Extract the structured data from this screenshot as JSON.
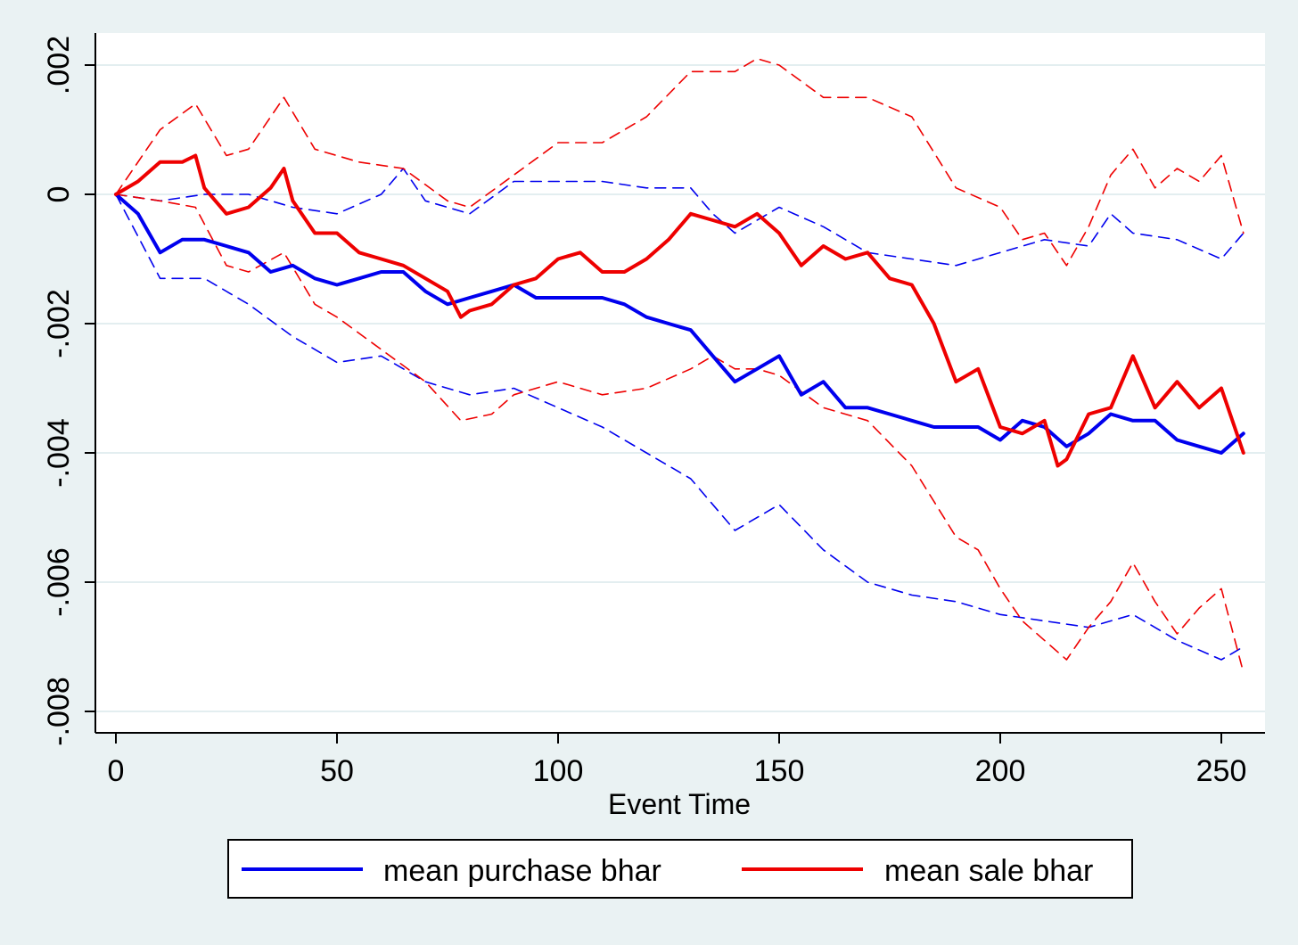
{
  "chart_data": {
    "type": "line",
    "title": "",
    "xlabel": "Event Time",
    "ylabel": "",
    "xlim": [
      0,
      256
    ],
    "ylim": [
      -0.008,
      0.0024
    ],
    "xticks": [
      0,
      50,
      100,
      150,
      200,
      250
    ],
    "xtick_labels": [
      "0",
      "50",
      "100",
      "150",
      "200",
      "250"
    ],
    "yticks": [
      0.002,
      0,
      -0.002,
      -0.004,
      -0.006,
      -0.008
    ],
    "ytick_labels": [
      ".002",
      "0",
      "-.002",
      "-.004",
      "-.006",
      "-.008"
    ],
    "grid": true,
    "legend_position": "bottom",
    "colors": {
      "purchase": "#0000ee",
      "sale": "#ee0000",
      "background": "#eaf2f3",
      "plot_background": "#ffffff",
      "grid": "#e3eef0"
    },
    "legend": [
      {
        "label": "mean purchase bhar",
        "series": "purchase"
      },
      {
        "label": "mean sale bhar",
        "series": "sale"
      }
    ],
    "series": [
      {
        "name": "mean purchase bhar",
        "key": "purchase",
        "style": "solid",
        "points": [
          [
            0,
            0
          ],
          [
            5,
            -0.0003
          ],
          [
            10,
            -0.0009
          ],
          [
            15,
            -0.0007
          ],
          [
            20,
            -0.0007
          ],
          [
            25,
            -0.0008
          ],
          [
            30,
            -0.0009
          ],
          [
            35,
            -0.0012
          ],
          [
            40,
            -0.0011
          ],
          [
            45,
            -0.0013
          ],
          [
            50,
            -0.0014
          ],
          [
            55,
            -0.0013
          ],
          [
            60,
            -0.0012
          ],
          [
            65,
            -0.0012
          ],
          [
            70,
            -0.0015
          ],
          [
            75,
            -0.0017
          ],
          [
            80,
            -0.0016
          ],
          [
            85,
            -0.0015
          ],
          [
            90,
            -0.0014
          ],
          [
            95,
            -0.0016
          ],
          [
            100,
            -0.0016
          ],
          [
            105,
            -0.0016
          ],
          [
            110,
            -0.0016
          ],
          [
            115,
            -0.0017
          ],
          [
            120,
            -0.0019
          ],
          [
            125,
            -0.002
          ],
          [
            130,
            -0.0021
          ],
          [
            135,
            -0.0025
          ],
          [
            140,
            -0.0029
          ],
          [
            145,
            -0.0027
          ],
          [
            150,
            -0.0025
          ],
          [
            155,
            -0.0031
          ],
          [
            160,
            -0.0029
          ],
          [
            165,
            -0.0033
          ],
          [
            170,
            -0.0033
          ],
          [
            175,
            -0.0034
          ],
          [
            180,
            -0.0035
          ],
          [
            185,
            -0.0036
          ],
          [
            190,
            -0.0036
          ],
          [
            195,
            -0.0036
          ],
          [
            200,
            -0.0038
          ],
          [
            205,
            -0.0035
          ],
          [
            210,
            -0.0036
          ],
          [
            215,
            -0.0039
          ],
          [
            220,
            -0.0037
          ],
          [
            225,
            -0.0034
          ],
          [
            230,
            -0.0035
          ],
          [
            235,
            -0.0035
          ],
          [
            240,
            -0.0038
          ],
          [
            245,
            -0.0039
          ],
          [
            250,
            -0.004
          ],
          [
            255,
            -0.0037
          ]
        ]
      },
      {
        "name": "purchase upper band",
        "key": "purchase",
        "style": "dashed",
        "points": [
          [
            0,
            0
          ],
          [
            10,
            -0.0001
          ],
          [
            20,
            0
          ],
          [
            30,
            0
          ],
          [
            40,
            -0.0002
          ],
          [
            50,
            -0.0003
          ],
          [
            60,
            0
          ],
          [
            65,
            0.0004
          ],
          [
            70,
            -0.0001
          ],
          [
            80,
            -0.0003
          ],
          [
            90,
            0.0002
          ],
          [
            100,
            0.0002
          ],
          [
            110,
            0.0002
          ],
          [
            120,
            0.0001
          ],
          [
            130,
            0.0001
          ],
          [
            135,
            -0.0003
          ],
          [
            140,
            -0.0006
          ],
          [
            150,
            -0.0002
          ],
          [
            160,
            -0.0005
          ],
          [
            170,
            -0.0009
          ],
          [
            180,
            -0.001
          ],
          [
            190,
            -0.0011
          ],
          [
            200,
            -0.0009
          ],
          [
            210,
            -0.0007
          ],
          [
            220,
            -0.0008
          ],
          [
            225,
            -0.0003
          ],
          [
            230,
            -0.0006
          ],
          [
            240,
            -0.0007
          ],
          [
            250,
            -0.001
          ],
          [
            255,
            -0.0006
          ]
        ]
      },
      {
        "name": "purchase lower band",
        "key": "purchase",
        "style": "dashed",
        "points": [
          [
            0,
            0
          ],
          [
            10,
            -0.0013
          ],
          [
            20,
            -0.0013
          ],
          [
            30,
            -0.0017
          ],
          [
            40,
            -0.0022
          ],
          [
            50,
            -0.0026
          ],
          [
            60,
            -0.0025
          ],
          [
            70,
            -0.0029
          ],
          [
            80,
            -0.0031
          ],
          [
            90,
            -0.003
          ],
          [
            100,
            -0.0033
          ],
          [
            110,
            -0.0036
          ],
          [
            120,
            -0.004
          ],
          [
            130,
            -0.0044
          ],
          [
            140,
            -0.0052
          ],
          [
            150,
            -0.0048
          ],
          [
            160,
            -0.0055
          ],
          [
            170,
            -0.006
          ],
          [
            180,
            -0.0062
          ],
          [
            190,
            -0.0063
          ],
          [
            200,
            -0.0065
          ],
          [
            210,
            -0.0066
          ],
          [
            220,
            -0.0067
          ],
          [
            230,
            -0.0065
          ],
          [
            240,
            -0.0069
          ],
          [
            250,
            -0.0072
          ],
          [
            255,
            -0.007
          ]
        ]
      },
      {
        "name": "mean sale bhar",
        "key": "sale",
        "style": "solid",
        "points": [
          [
            0,
            0
          ],
          [
            5,
            0.0002
          ],
          [
            10,
            0.0005
          ],
          [
            15,
            0.0005
          ],
          [
            18,
            0.0006
          ],
          [
            20,
            0.0001
          ],
          [
            25,
            -0.0003
          ],
          [
            30,
            -0.0002
          ],
          [
            35,
            0.0001
          ],
          [
            38,
            0.0004
          ],
          [
            40,
            -0.0001
          ],
          [
            45,
            -0.0006
          ],
          [
            50,
            -0.0006
          ],
          [
            55,
            -0.0009
          ],
          [
            60,
            -0.001
          ],
          [
            65,
            -0.0011
          ],
          [
            70,
            -0.0013
          ],
          [
            75,
            -0.0015
          ],
          [
            78,
            -0.0019
          ],
          [
            80,
            -0.0018
          ],
          [
            85,
            -0.0017
          ],
          [
            90,
            -0.0014
          ],
          [
            95,
            -0.0013
          ],
          [
            100,
            -0.001
          ],
          [
            105,
            -0.0009
          ],
          [
            110,
            -0.0012
          ],
          [
            115,
            -0.0012
          ],
          [
            120,
            -0.001
          ],
          [
            125,
            -0.0007
          ],
          [
            130,
            -0.0003
          ],
          [
            135,
            -0.0004
          ],
          [
            140,
            -0.0005
          ],
          [
            145,
            -0.0003
          ],
          [
            150,
            -0.0006
          ],
          [
            155,
            -0.0011
          ],
          [
            160,
            -0.0008
          ],
          [
            165,
            -0.001
          ],
          [
            170,
            -0.0009
          ],
          [
            175,
            -0.0013
          ],
          [
            180,
            -0.0014
          ],
          [
            185,
            -0.002
          ],
          [
            190,
            -0.0029
          ],
          [
            195,
            -0.0027
          ],
          [
            200,
            -0.0036
          ],
          [
            205,
            -0.0037
          ],
          [
            210,
            -0.0035
          ],
          [
            213,
            -0.0042
          ],
          [
            215,
            -0.0041
          ],
          [
            220,
            -0.0034
          ],
          [
            225,
            -0.0033
          ],
          [
            230,
            -0.0025
          ],
          [
            235,
            -0.0033
          ],
          [
            240,
            -0.0029
          ],
          [
            245,
            -0.0033
          ],
          [
            250,
            -0.003
          ],
          [
            255,
            -0.004
          ]
        ]
      },
      {
        "name": "sale upper band",
        "key": "sale",
        "style": "dashed",
        "points": [
          [
            0,
            0
          ],
          [
            10,
            0.001
          ],
          [
            18,
            0.0014
          ],
          [
            25,
            0.0006
          ],
          [
            30,
            0.0007
          ],
          [
            38,
            0.0015
          ],
          [
            45,
            0.0007
          ],
          [
            55,
            0.0005
          ],
          [
            65,
            0.0004
          ],
          [
            75,
            -0.0001
          ],
          [
            80,
            -0.0002
          ],
          [
            90,
            0.0003
          ],
          [
            100,
            0.0008
          ],
          [
            110,
            0.0008
          ],
          [
            120,
            0.0012
          ],
          [
            130,
            0.0019
          ],
          [
            140,
            0.0019
          ],
          [
            145,
            0.0021
          ],
          [
            150,
            0.002
          ],
          [
            160,
            0.0015
          ],
          [
            170,
            0.0015
          ],
          [
            180,
            0.0012
          ],
          [
            190,
            0.0001
          ],
          [
            200,
            -0.0002
          ],
          [
            205,
            -0.0007
          ],
          [
            210,
            -0.0006
          ],
          [
            215,
            -0.0011
          ],
          [
            220,
            -0.0005
          ],
          [
            225,
            0.0003
          ],
          [
            230,
            0.0007
          ],
          [
            235,
            0.0001
          ],
          [
            240,
            0.0004
          ],
          [
            245,
            0.0002
          ],
          [
            250,
            0.0006
          ],
          [
            255,
            -0.0006
          ]
        ]
      },
      {
        "name": "sale lower band",
        "key": "sale",
        "style": "dashed",
        "points": [
          [
            0,
            0
          ],
          [
            10,
            -0.0001
          ],
          [
            18,
            -0.0002
          ],
          [
            25,
            -0.0011
          ],
          [
            30,
            -0.0012
          ],
          [
            38,
            -0.0009
          ],
          [
            45,
            -0.0017
          ],
          [
            50,
            -0.0019
          ],
          [
            60,
            -0.0024
          ],
          [
            70,
            -0.0029
          ],
          [
            78,
            -0.0035
          ],
          [
            85,
            -0.0034
          ],
          [
            90,
            -0.0031
          ],
          [
            100,
            -0.0029
          ],
          [
            110,
            -0.0031
          ],
          [
            120,
            -0.003
          ],
          [
            130,
            -0.0027
          ],
          [
            135,
            -0.0025
          ],
          [
            140,
            -0.0027
          ],
          [
            145,
            -0.0027
          ],
          [
            150,
            -0.0028
          ],
          [
            160,
            -0.0033
          ],
          [
            170,
            -0.0035
          ],
          [
            180,
            -0.0042
          ],
          [
            190,
            -0.0053
          ],
          [
            195,
            -0.0055
          ],
          [
            200,
            -0.0061
          ],
          [
            205,
            -0.0066
          ],
          [
            210,
            -0.0069
          ],
          [
            215,
            -0.0072
          ],
          [
            220,
            -0.0067
          ],
          [
            225,
            -0.0063
          ],
          [
            230,
            -0.0057
          ],
          [
            235,
            -0.0063
          ],
          [
            240,
            -0.0068
          ],
          [
            245,
            -0.0064
          ],
          [
            250,
            -0.0061
          ],
          [
            255,
            -0.0074
          ]
        ]
      }
    ]
  }
}
